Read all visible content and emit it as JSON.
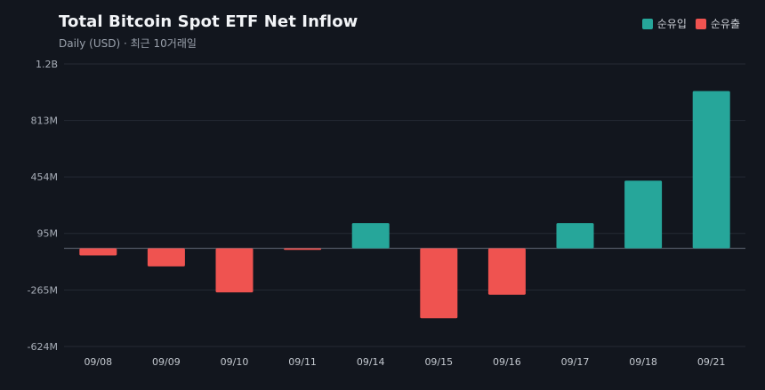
{
  "header": {
    "title": "Total Bitcoin Spot ETF Net Inflow",
    "subtitle": "Daily (USD) · 최근 10거래일"
  },
  "legend": [
    {
      "label": "순유입",
      "color": "#26a69a"
    },
    {
      "label": "순유출",
      "color": "#ef5350"
    }
  ],
  "chart_data": {
    "type": "bar",
    "title": "Total Bitcoin Spot ETF Net Inflow",
    "subtitle": "Daily (USD) · 최근 10거래일",
    "xlabel": "",
    "ylabel": "",
    "categories": [
      "09/08",
      "09/09",
      "09/10",
      "09/11",
      "09/14",
      "09/15",
      "09/16",
      "09/17",
      "09/18",
      "09/21"
    ],
    "values": [
      -45,
      -115,
      -280,
      -10,
      160,
      -445,
      -295,
      160,
      430,
      1000
    ],
    "units": "M USD",
    "ylim": [
      -624,
      1200
    ],
    "y_ticks": [
      1172,
      813,
      454,
      95,
      -265,
      -624
    ],
    "y_tick_labels": [
      "1.2B",
      "813M",
      "454M",
      "95M",
      "-265M",
      "-624M"
    ],
    "grid": true,
    "legend_position": "top-right",
    "colors": {
      "positive": "#26a69a",
      "negative": "#ef5350"
    }
  }
}
